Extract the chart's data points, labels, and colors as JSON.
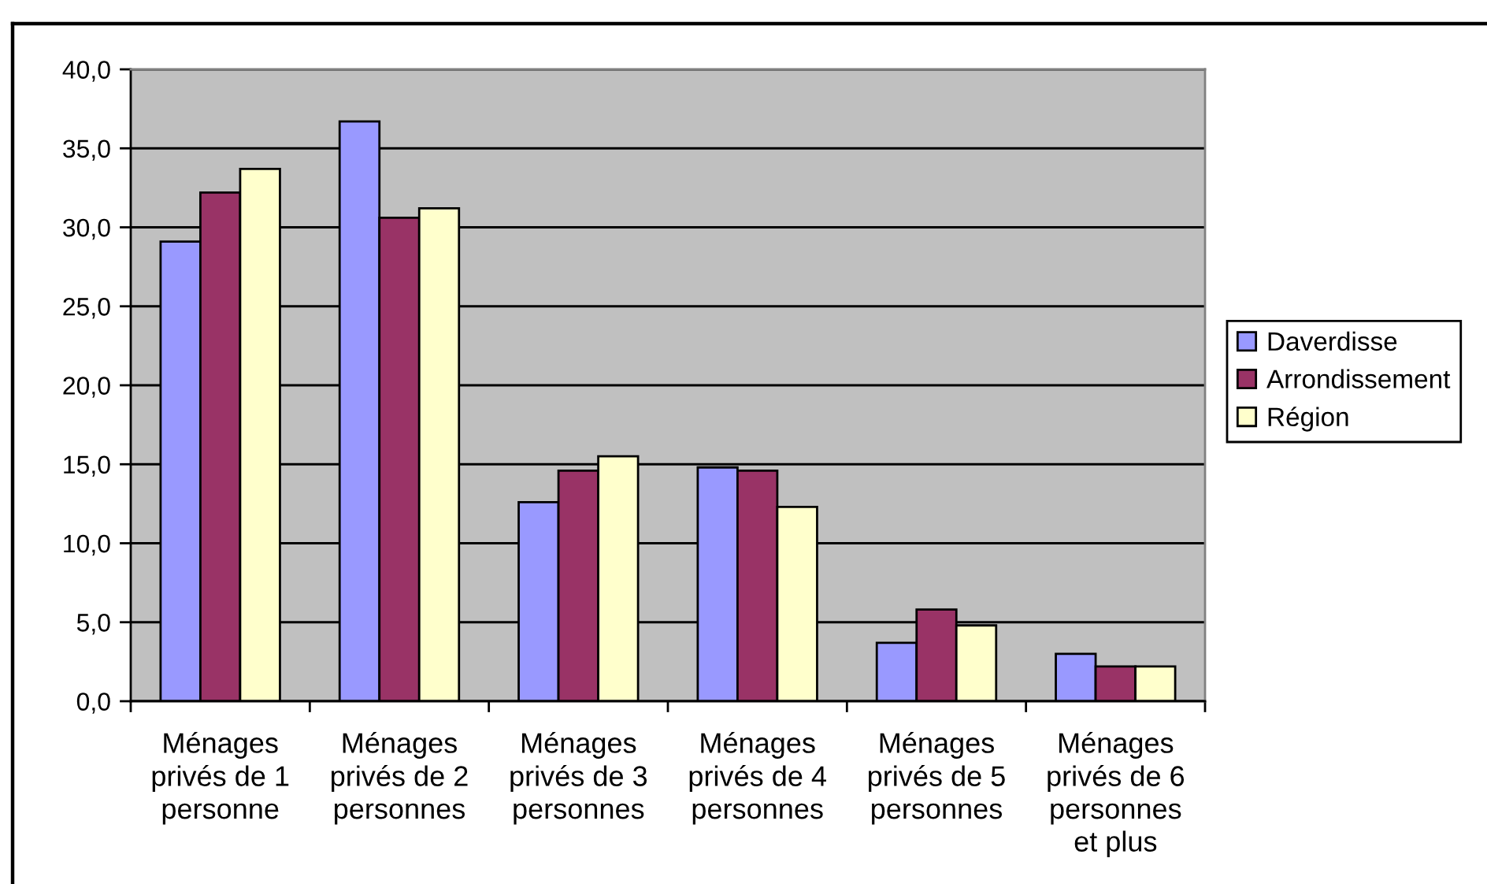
{
  "chart_data": {
    "type": "bar",
    "categories": [
      "Ménages\nprivés de 1\npersonne",
      "Ménages\nprivés de 2\npersonnes",
      "Ménages\nprivés de 3\npersonnes",
      "Ménages\nprivés de 4\npersonnes",
      "Ménages\nprivés de 5\npersonnes",
      "Ménages\nprivés de 6\npersonnes\net plus"
    ],
    "series": [
      {
        "name": "Daverdisse",
        "color": "#9999ff",
        "values": [
          29.1,
          36.7,
          12.6,
          14.8,
          3.7,
          3.0
        ]
      },
      {
        "name": "Arrondissement",
        "color": "#993366",
        "values": [
          32.2,
          30.6,
          14.6,
          14.6,
          5.8,
          2.2
        ]
      },
      {
        "name": "Région",
        "color": "#ffffcc",
        "values": [
          33.7,
          31.2,
          15.5,
          12.3,
          4.8,
          2.2
        ]
      }
    ],
    "ylim": [
      0,
      40
    ],
    "yticks": [
      {
        "value": 0,
        "label": "0,0"
      },
      {
        "value": 5,
        "label": "5,0"
      },
      {
        "value": 10,
        "label": "10,0"
      },
      {
        "value": 15,
        "label": "15,0"
      },
      {
        "value": 20,
        "label": "20,0"
      },
      {
        "value": 25,
        "label": "25,0"
      },
      {
        "value": 30,
        "label": "30,0"
      },
      {
        "value": 35,
        "label": "35,0"
      },
      {
        "value": 40,
        "label": "40,0"
      }
    ],
    "grid": "y",
    "legend": "right"
  }
}
